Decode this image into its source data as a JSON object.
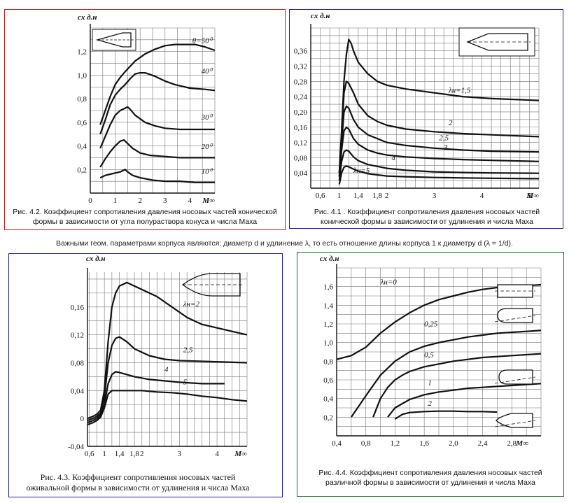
{
  "mid_note": "Важными геом. параметрами корпуса  являются: диаметр d и удлинение λ,  то есть отношение длины корпуса 1 к диаметру d (λ = 1/d).",
  "chart_data": [
    {
      "id": "fig42",
      "type": "line",
      "caption": "Рис. 4.2. Коэффициент сопротивления давления носовых частей конической формы в зависимости от угла полураствора конуса и числа Маха",
      "ylabel": "cx д.н",
      "xlabel": "M∞",
      "xlim": [
        0,
        5
      ],
      "ylim": [
        0,
        1.4
      ],
      "xticks": [
        "0",
        "1",
        "2",
        "3",
        "4"
      ],
      "yticks": [
        "0,2",
        "0,4",
        "0,6",
        "0,8",
        "1,0",
        "1,2"
      ],
      "grid": true,
      "series": [
        {
          "name": "θ=50⁰",
          "x": [
            0.4,
            0.6,
            0.8,
            1.0,
            1.2,
            1.4,
            1.8,
            2.2,
            2.6,
            3.0,
            3.4,
            3.8,
            4.2,
            4.6,
            5.0
          ],
          "y": [
            0.58,
            0.7,
            0.82,
            0.92,
            0.98,
            1.03,
            1.12,
            1.18,
            1.22,
            1.25,
            1.26,
            1.26,
            1.26,
            1.24,
            1.21
          ]
        },
        {
          "name": "40⁰",
          "x": [
            0.4,
            0.6,
            0.8,
            1.0,
            1.2,
            1.4,
            1.6,
            1.8,
            2.0,
            2.2,
            2.6,
            3.0,
            3.4,
            4.0,
            4.6,
            5.0
          ],
          "y": [
            0.5,
            0.62,
            0.75,
            0.83,
            0.88,
            0.92,
            0.97,
            1.01,
            1.02,
            1.02,
            0.99,
            0.95,
            0.92,
            0.89,
            0.88,
            0.87
          ]
        },
        {
          "name": "30⁰",
          "x": [
            0.4,
            0.6,
            0.8,
            1.0,
            1.2,
            1.4,
            1.5,
            1.6,
            1.8,
            2.2,
            2.6,
            3.0,
            3.6,
            4.2,
            5.0
          ],
          "y": [
            0.38,
            0.48,
            0.58,
            0.66,
            0.7,
            0.72,
            0.73,
            0.71,
            0.66,
            0.6,
            0.57,
            0.55,
            0.54,
            0.54,
            0.54
          ]
        },
        {
          "name": "20⁰",
          "x": [
            0.4,
            0.6,
            0.8,
            1.0,
            1.2,
            1.35,
            1.5,
            1.7,
            2.0,
            2.4,
            3.0,
            3.6,
            4.2,
            5.0
          ],
          "y": [
            0.22,
            0.29,
            0.35,
            0.4,
            0.44,
            0.45,
            0.42,
            0.38,
            0.34,
            0.32,
            0.31,
            0.3,
            0.3,
            0.3
          ]
        },
        {
          "name": "10⁰",
          "x": [
            0.4,
            0.6,
            0.8,
            1.0,
            1.2,
            1.3,
            1.4,
            1.5,
            1.7,
            2.0,
            2.5,
            3.0,
            3.6,
            4.2,
            5.0
          ],
          "y": [
            0.13,
            0.15,
            0.16,
            0.17,
            0.18,
            0.19,
            0.2,
            0.18,
            0.15,
            0.13,
            0.11,
            0.1,
            0.1,
            0.09,
            0.09
          ]
        }
      ]
    },
    {
      "id": "fig41",
      "type": "line",
      "caption": "Рис. 4.1 . Коэффициент сопротивления давления носовых частей конической формы в зависимости от удлинения и числа Маха",
      "ylabel": "cx д.н",
      "xlabel": "M∞",
      "xlim": [
        0.4,
        5.2
      ],
      "ylim": [
        0,
        0.42
      ],
      "xticks": [
        "0,6",
        "1",
        "1,4",
        "1,8",
        "2",
        "3",
        "4",
        "5"
      ],
      "yticks": [
        "0,04",
        "0,08",
        "0,12",
        "0,16",
        "0,20",
        "0,24",
        "0,28",
        "0,32",
        "0,36"
      ],
      "grid": true,
      "series": [
        {
          "name": "λн=1,5",
          "x": [
            1.0,
            1.05,
            1.1,
            1.15,
            1.2,
            1.25,
            1.3,
            1.4,
            1.6,
            1.8,
            2.0,
            2.4,
            3.0,
            3.6,
            4.2,
            5.2
          ],
          "y": [
            0.04,
            0.15,
            0.28,
            0.35,
            0.39,
            0.38,
            0.36,
            0.33,
            0.3,
            0.28,
            0.27,
            0.26,
            0.25,
            0.24,
            0.235,
            0.23
          ]
        },
        {
          "name": "2",
          "x": [
            1.0,
            1.05,
            1.1,
            1.15,
            1.2,
            1.3,
            1.4,
            1.6,
            1.8,
            2.0,
            2.4,
            3.0,
            3.6,
            4.2,
            5.2
          ],
          "y": [
            0.04,
            0.13,
            0.25,
            0.28,
            0.275,
            0.25,
            0.22,
            0.19,
            0.175,
            0.165,
            0.155,
            0.148,
            0.143,
            0.14,
            0.135
          ]
        },
        {
          "name": "2,5",
          "x": [
            1.0,
            1.05,
            1.1,
            1.15,
            1.2,
            1.3,
            1.4,
            1.6,
            1.8,
            2.0,
            2.4,
            3.0,
            3.6,
            4.2,
            5.2
          ],
          "y": [
            0.03,
            0.12,
            0.2,
            0.215,
            0.21,
            0.18,
            0.16,
            0.14,
            0.13,
            0.12,
            0.112,
            0.105,
            0.1,
            0.097,
            0.095
          ]
        },
        {
          "name": "3",
          "x": [
            1.0,
            1.05,
            1.1,
            1.15,
            1.2,
            1.3,
            1.4,
            1.6,
            1.8,
            2.0,
            2.4,
            3.0,
            3.6,
            4.2,
            5.2
          ],
          "y": [
            0.03,
            0.1,
            0.15,
            0.16,
            0.155,
            0.13,
            0.115,
            0.1,
            0.092,
            0.087,
            0.082,
            0.078,
            0.075,
            0.073,
            0.07
          ]
        },
        {
          "name": "4",
          "x": [
            1.0,
            1.05,
            1.1,
            1.15,
            1.2,
            1.3,
            1.4,
            1.6,
            2.0,
            2.4,
            3.0,
            3.6,
            4.2,
            5.2
          ],
          "y": [
            0.02,
            0.07,
            0.095,
            0.1,
            0.097,
            0.082,
            0.072,
            0.062,
            0.052,
            0.047,
            0.043,
            0.041,
            0.04,
            0.039
          ]
        },
        {
          "name": "λн=5",
          "x": [
            1.0,
            1.05,
            1.1,
            1.15,
            1.2,
            1.3,
            1.4,
            1.6,
            2.0,
            2.4,
            3.0,
            3.6,
            4.2,
            5.2
          ],
          "y": [
            0.01,
            0.04,
            0.055,
            0.058,
            0.056,
            0.05,
            0.045,
            0.038,
            0.032,
            0.03,
            0.028,
            0.027,
            0.026,
            0.025
          ]
        }
      ]
    },
    {
      "id": "fig43",
      "type": "line",
      "caption": "Рис. 4.3. Коэффициент сопротивления носовых частей оживальной формы в зависимости от удлинения и числа Маха",
      "ylabel": "cx д.н",
      "xlabel": "M∞",
      "xlim": [
        0.55,
        4.8
      ],
      "ylim": [
        -0.04,
        0.21
      ],
      "xticks": [
        "0,6",
        "1",
        "1,4",
        "1,8",
        "2",
        "3",
        "4"
      ],
      "yticks": [
        "-0,04",
        "0",
        "0,04",
        "0,08",
        "0,12",
        "0,16"
      ],
      "grid": true,
      "series": [
        {
          "name": "λн=2",
          "x": [
            0.55,
            0.7,
            0.8,
            0.9,
            1.0,
            1.1,
            1.2,
            1.3,
            1.4,
            1.6,
            1.8,
            2.0,
            2.4,
            2.8,
            3.2,
            3.6,
            4.0,
            4.4,
            4.8
          ],
          "y": [
            0.0,
            0.003,
            0.006,
            0.012,
            0.04,
            0.11,
            0.16,
            0.18,
            0.19,
            0.195,
            0.19,
            0.185,
            0.175,
            0.16,
            0.145,
            0.135,
            0.13,
            0.125,
            0.12
          ]
        },
        {
          "name": "2,5",
          "x": [
            0.55,
            0.7,
            0.8,
            0.9,
            1.0,
            1.1,
            1.2,
            1.3,
            1.4,
            1.6,
            1.8,
            2.2,
            2.6,
            3.0,
            3.6,
            4.2,
            4.8
          ],
          "y": [
            -0.003,
            0.0,
            0.003,
            0.008,
            0.03,
            0.08,
            0.105,
            0.115,
            0.117,
            0.11,
            0.1,
            0.09,
            0.085,
            0.083,
            0.082,
            0.081,
            0.08
          ]
        },
        {
          "name": "4",
          "x": [
            0.55,
            0.7,
            0.8,
            0.9,
            1.0,
            1.1,
            1.2,
            1.3,
            1.4,
            1.6,
            1.8,
            2.2,
            2.6,
            3.0,
            3.6,
            4.2
          ],
          "y": [
            -0.006,
            -0.003,
            0.0,
            0.005,
            0.02,
            0.05,
            0.063,
            0.067,
            0.066,
            0.063,
            0.06,
            0.056,
            0.054,
            0.052,
            0.05,
            0.05
          ]
        },
        {
          "name": "5",
          "x": [
            0.55,
            0.7,
            0.8,
            0.9,
            1.0,
            1.1,
            1.2,
            1.3,
            1.4,
            1.6,
            2.0,
            2.4,
            2.8,
            3.2,
            3.6,
            4.0,
            4.4,
            4.8
          ],
          "y": [
            -0.009,
            -0.006,
            -0.003,
            0.002,
            0.015,
            0.035,
            0.04,
            0.04,
            0.04,
            0.04,
            0.04,
            0.038,
            0.037,
            0.035,
            0.032,
            0.03,
            0.027,
            0.025
          ]
        }
      ]
    },
    {
      "id": "fig44",
      "type": "line",
      "caption": "Рис. 4.4. Коэффициент сопротивления давления носовых частей различной формы в зависимости от удлинения и числа Маха",
      "ylabel": "cx д.н",
      "xlabel": "M∞",
      "xlim": [
        0.4,
        3.2
      ],
      "ylim": [
        0,
        1.8
      ],
      "xticks": [
        "0,4",
        "0,8",
        "1,2",
        "1,6",
        "2,0",
        "2,4",
        "2,8"
      ],
      "yticks": [
        "0,2",
        "0,4",
        "0,6",
        "0,8",
        "1,0",
        "1,2",
        "1,4",
        "1,6"
      ],
      "grid": true,
      "series": [
        {
          "name": "λн=0",
          "x": [
            0.4,
            0.6,
            0.8,
            1.0,
            1.2,
            1.4,
            1.6,
            1.8,
            2.0,
            2.2,
            2.4,
            2.6,
            2.8,
            3.0,
            3.2
          ],
          "y": [
            0.82,
            0.86,
            0.95,
            1.1,
            1.22,
            1.32,
            1.4,
            1.46,
            1.5,
            1.54,
            1.57,
            1.59,
            1.6,
            1.61,
            1.62
          ]
        },
        {
          "name": "0,25",
          "x": [
            0.6,
            0.8,
            1.0,
            1.2,
            1.4,
            1.6,
            1.8,
            2.0,
            2.2,
            2.4,
            2.6,
            2.8,
            3.0,
            3.2
          ],
          "y": [
            0.2,
            0.43,
            0.65,
            0.8,
            0.9,
            0.96,
            1.0,
            1.03,
            1.06,
            1.08,
            1.1,
            1.11,
            1.12,
            1.13
          ]
        },
        {
          "name": "0,5",
          "x": [
            0.9,
            1.0,
            1.1,
            1.2,
            1.3,
            1.4,
            1.6,
            1.8,
            2.0,
            2.2,
            2.4,
            2.6,
            2.8,
            3.0,
            3.2
          ],
          "y": [
            0.2,
            0.4,
            0.52,
            0.6,
            0.65,
            0.69,
            0.74,
            0.77,
            0.8,
            0.82,
            0.84,
            0.85,
            0.86,
            0.87,
            0.88
          ]
        },
        {
          "name": "1",
          "x": [
            1.1,
            1.2,
            1.4,
            1.6,
            1.8,
            2.0,
            2.2,
            2.4,
            2.6,
            2.8,
            3.0,
            3.2
          ],
          "y": [
            0.2,
            0.3,
            0.39,
            0.44,
            0.47,
            0.49,
            0.51,
            0.52,
            0.53,
            0.54,
            0.55,
            0.56
          ]
        },
        {
          "name": "2",
          "x": [
            1.2,
            1.3,
            1.4,
            1.6,
            1.8,
            2.0,
            2.2,
            2.4,
            2.6
          ],
          "y": [
            0.18,
            0.23,
            0.25,
            0.26,
            0.265,
            0.265,
            0.26,
            0.26,
            0.255
          ]
        }
      ]
    }
  ]
}
